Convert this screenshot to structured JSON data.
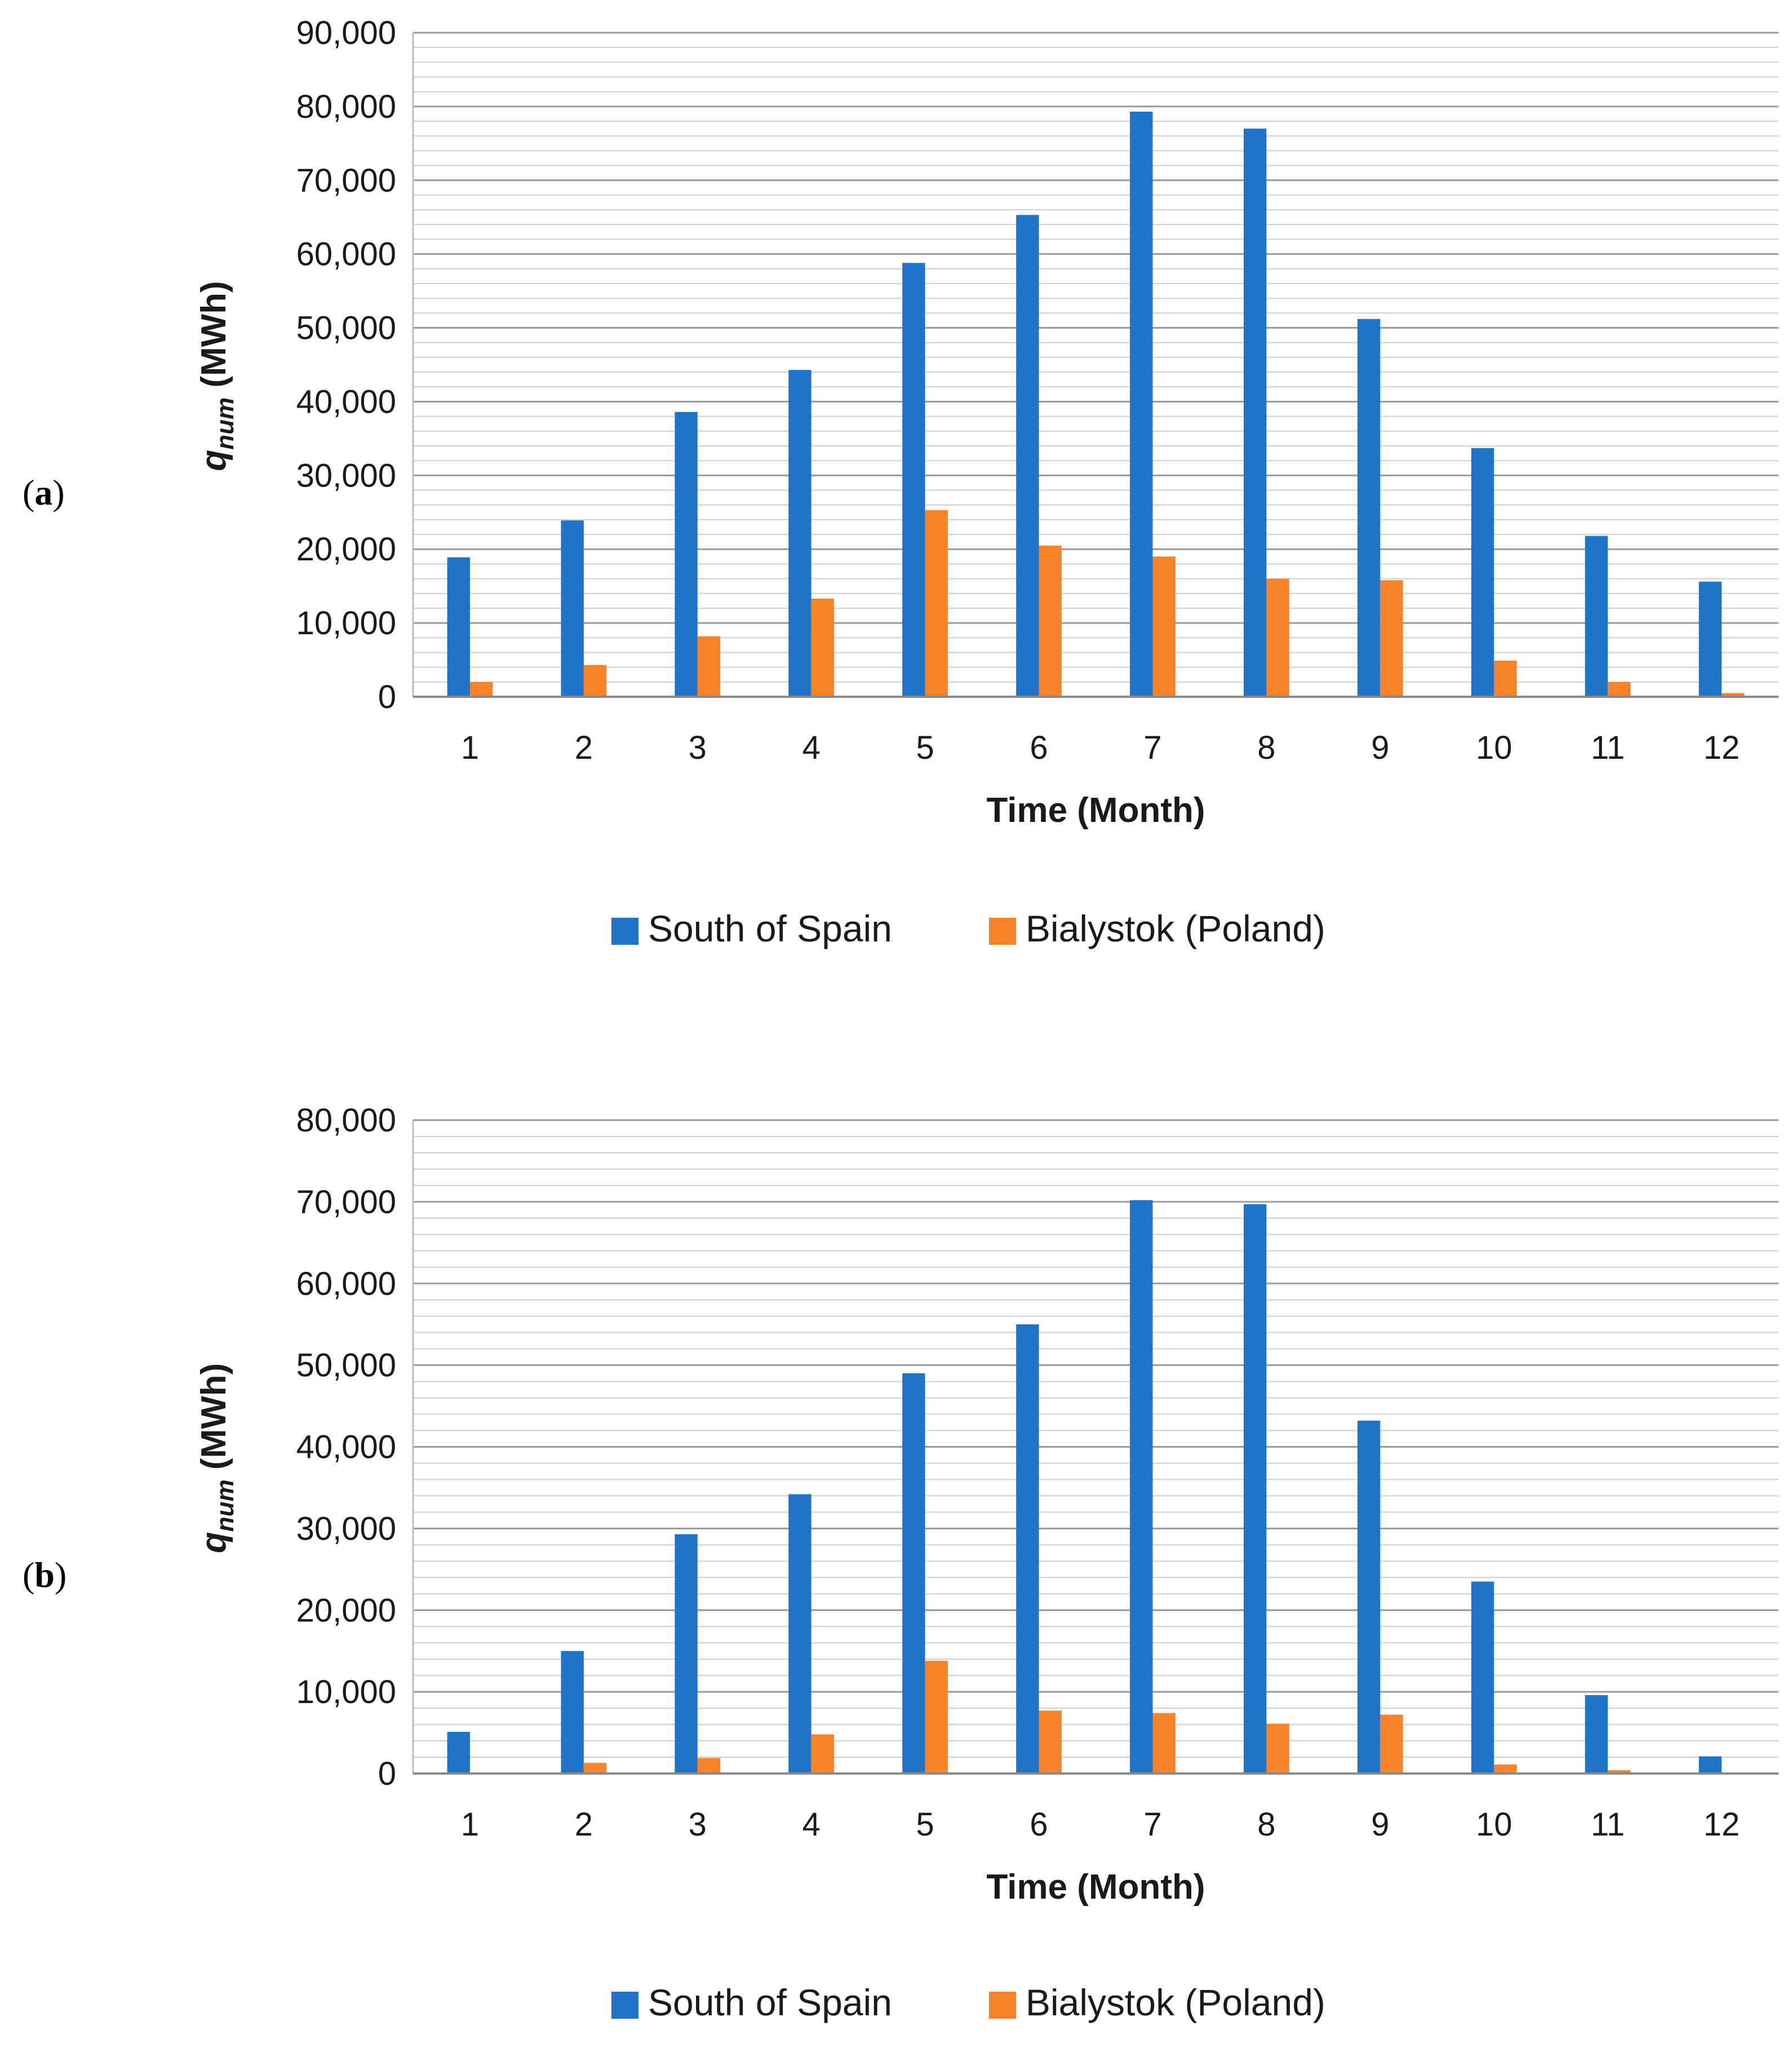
{
  "figure": {
    "panels": [
      {
        "label_open": "(",
        "label_letter": "a",
        "label_close": ")"
      },
      {
        "label_open": "(",
        "label_letter": "b",
        "label_close": ")"
      }
    ]
  },
  "colors": {
    "south_of_spain": "#1f73c9",
    "bialystok": "#f7822a",
    "grid_major": "#999999",
    "grid_minor": "#cfcfcf"
  },
  "chart_data": [
    {
      "type": "bar",
      "panel": "a",
      "title": "",
      "xlabel": "Time (Month)",
      "ylabel_symbol": "q",
      "ylabel_subscript": "num",
      "ylabel_unit": "(MWh)",
      "categories": [
        "1",
        "2",
        "3",
        "4",
        "5",
        "6",
        "7",
        "8",
        "9",
        "10",
        "11",
        "12"
      ],
      "ylim": [
        0,
        90000
      ],
      "yticks": [
        0,
        10000,
        20000,
        30000,
        40000,
        50000,
        60000,
        70000,
        80000,
        90000
      ],
      "ytick_labels": [
        "0",
        "10,000",
        "20,000",
        "30,000",
        "40,000",
        "50,000",
        "60,000",
        "70,000",
        "80,000",
        "90,000"
      ],
      "minor_grid_step": 2000,
      "legend_position": "bottom",
      "series": [
        {
          "name": "South of Spain",
          "color_key": "south_of_spain",
          "values": [
            18900,
            23900,
            38600,
            44300,
            58800,
            65300,
            79300,
            77000,
            51200,
            33700,
            21800,
            15600
          ]
        },
        {
          "name": "Bialystok (Poland)",
          "color_key": "bialystok",
          "values": [
            2000,
            4300,
            8200,
            13300,
            25300,
            20500,
            19000,
            16000,
            15800,
            4900,
            2000,
            500
          ]
        }
      ]
    },
    {
      "type": "bar",
      "panel": "b",
      "title": "",
      "xlabel": "Time (Month)",
      "ylabel_symbol": "q",
      "ylabel_subscript": "num",
      "ylabel_unit": "(MWh)",
      "categories": [
        "1",
        "2",
        "3",
        "4",
        "5",
        "6",
        "7",
        "8",
        "9",
        "10",
        "11",
        "12"
      ],
      "ylim": [
        0,
        80000
      ],
      "yticks": [
        0,
        10000,
        20000,
        30000,
        40000,
        50000,
        60000,
        70000,
        80000
      ],
      "ytick_labels": [
        "0",
        "10,000",
        "20,000",
        "30,000",
        "40,000",
        "50,000",
        "60,000",
        "70,000",
        "80,000"
      ],
      "minor_grid_step": 2000,
      "legend_position": "bottom",
      "series": [
        {
          "name": "South of Spain",
          "color_key": "south_of_spain",
          "values": [
            5100,
            15000,
            29300,
            34200,
            49000,
            55000,
            70200,
            69700,
            43200,
            23500,
            9600,
            2100
          ]
        },
        {
          "name": "Bialystok (Poland)",
          "color_key": "bialystok",
          "values": [
            0,
            1300,
            1900,
            4800,
            13800,
            7700,
            7400,
            6100,
            7200,
            1100,
            400,
            0
          ]
        }
      ]
    }
  ]
}
